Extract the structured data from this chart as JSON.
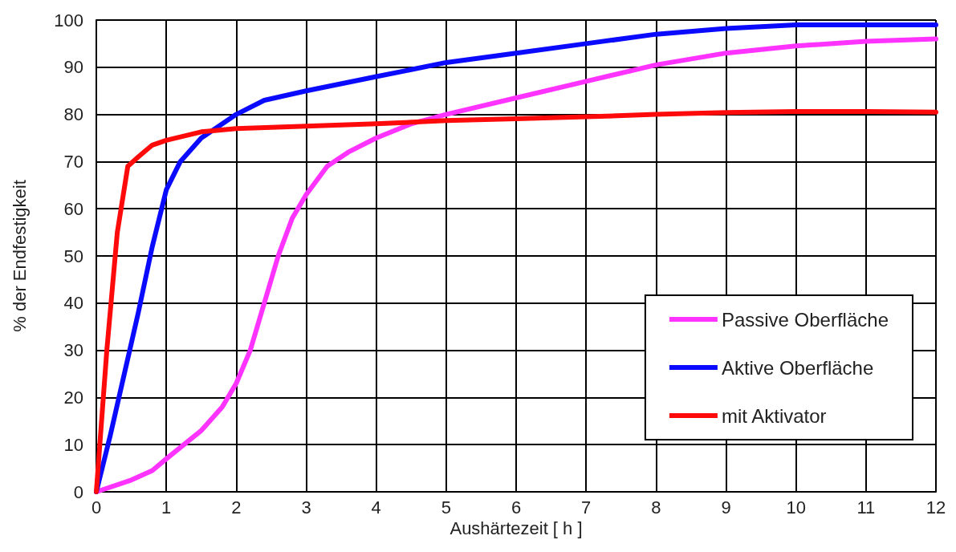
{
  "chart_data": {
    "type": "line",
    "xlabel": "Aushärtezeit [ h ]",
    "ylabel": "% der Endfestigkeit",
    "xlim": [
      0,
      12
    ],
    "xticks": [
      0,
      1,
      2,
      3,
      4,
      5,
      6,
      7,
      8,
      9,
      10,
      11,
      12
    ],
    "ylim": [
      0,
      100
    ],
    "yticks": [
      0,
      10,
      20,
      30,
      40,
      50,
      60,
      70,
      80,
      90,
      100
    ],
    "grid": true,
    "legend": "bottom right",
    "marker": "none",
    "line_style": "solid",
    "series": [
      {
        "name": "Passive Oberfläche",
        "color": "#ff33ff",
        "x": [
          0,
          0.5,
          0.8,
          1,
          1.5,
          1.8,
          2,
          2.2,
          2.4,
          2.6,
          2.8,
          3,
          3.3,
          3.6,
          4,
          4.5,
          5,
          6,
          7,
          8,
          9,
          10,
          11,
          12
        ],
        "values": [
          0,
          2.5,
          4.5,
          7,
          13,
          18,
          23,
          30,
          40,
          50,
          58,
          63,
          69,
          72,
          75,
          78,
          80,
          83.5,
          87,
          90.5,
          93,
          94.5,
          95.5,
          96
        ]
      },
      {
        "name": "Aktive Oberfläche",
        "color": "#0a0aff",
        "x": [
          0,
          0.2,
          0.4,
          0.6,
          0.8,
          1,
          1.2,
          1.5,
          2,
          2.4,
          3,
          4,
          5,
          6,
          7,
          8,
          9,
          10,
          11,
          12
        ],
        "values": [
          0,
          12,
          25,
          38,
          52,
          64,
          70,
          75,
          80,
          83,
          85,
          88,
          91,
          93,
          95,
          97,
          98.2,
          99,
          99,
          99
        ]
      },
      {
        "name": "mit Aktivator",
        "color": "#ff0a0a",
        "x": [
          0,
          0.15,
          0.3,
          0.45,
          0.6,
          0.8,
          1,
          1.5,
          2,
          3,
          4,
          5,
          6,
          7,
          8,
          9,
          10,
          11,
          12
        ],
        "values": [
          0,
          30,
          55,
          69,
          71,
          73.5,
          74.5,
          76.3,
          77,
          77.5,
          78,
          78.7,
          79.1,
          79.5,
          80,
          80.4,
          80.6,
          80.6,
          80.5
        ]
      }
    ]
  }
}
